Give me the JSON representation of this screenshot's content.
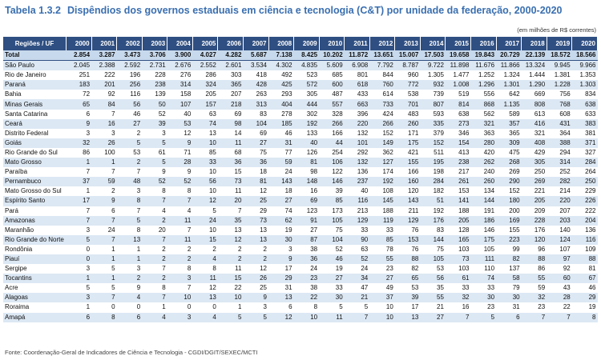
{
  "title": {
    "label": "Tabela 1.3.2",
    "text": "Dispêndios dos governos estaduais em ciência e tecnologia (C&T) por unidade da federação, 2000-2020"
  },
  "unit_note": "(em milhões de R$ correntes)",
  "table": {
    "header": [
      "Regiões / UF",
      "2000",
      "2001",
      "2002",
      "2003",
      "2004",
      "2005",
      "2006",
      "2007",
      "2008",
      "2009",
      "2010",
      "2011",
      "2012",
      "2013",
      "2014",
      "2015",
      "2016",
      "2017",
      "2018",
      "2019",
      "2020"
    ],
    "rows": [
      [
        "Total",
        "2.854",
        "3.287",
        "3.473",
        "3.706",
        "3.900",
        "4.027",
        "4.282",
        "5.687",
        "7.138",
        "8.425",
        "10.202",
        "11.872",
        "13.651",
        "15.007",
        "17.503",
        "19.658",
        "19.843",
        "20.729",
        "22.139",
        "18.572",
        "18.566"
      ],
      [
        "São Paulo",
        "2.045",
        "2.388",
        "2.592",
        "2.731",
        "2.676",
        "2.552",
        "2.601",
        "3.534",
        "4.302",
        "4.835",
        "5.609",
        "6.908",
        "7.792",
        "8.787",
        "9.722",
        "11.898",
        "11.676",
        "11.866",
        "13.324",
        "9.945",
        "9.966"
      ],
      [
        "Rio de Janeiro",
        "251",
        "222",
        "196",
        "228",
        "276",
        "286",
        "303",
        "418",
        "492",
        "523",
        "685",
        "801",
        "844",
        "960",
        "1.305",
        "1.477",
        "1.252",
        "1.324",
        "1.444",
        "1.381",
        "1.353"
      ],
      [
        "Paraná",
        "183",
        "201",
        "256",
        "238",
        "314",
        "324",
        "365",
        "428",
        "425",
        "572",
        "600",
        "618",
        "760",
        "772",
        "932",
        "1.008",
        "1.296",
        "1.301",
        "1.290",
        "1.228",
        "1.303"
      ],
      [
        "Bahia",
        "72",
        "92",
        "116",
        "139",
        "158",
        "205",
        "207",
        "263",
        "293",
        "305",
        "487",
        "433",
        "614",
        "538",
        "739",
        "519",
        "556",
        "642",
        "669",
        "756",
        "834"
      ],
      [
        "Minas Gerais",
        "65",
        "84",
        "56",
        "50",
        "107",
        "157",
        "218",
        "313",
        "404",
        "444",
        "557",
        "663",
        "733",
        "701",
        "807",
        "814",
        "868",
        "1.135",
        "808",
        "768",
        "638"
      ],
      [
        "Santa Catarina",
        "6",
        "7",
        "46",
        "52",
        "40",
        "63",
        "69",
        "83",
        "278",
        "302",
        "328",
        "396",
        "424",
        "483",
        "593",
        "638",
        "562",
        "589",
        "613",
        "608",
        "633"
      ],
      [
        "Ceará",
        "9",
        "16",
        "27",
        "39",
        "53",
        "74",
        "98",
        "104",
        "185",
        "192",
        "266",
        "220",
        "266",
        "260",
        "335",
        "273",
        "321",
        "357",
        "416",
        "431",
        "383"
      ],
      [
        "Distrito Federal",
        "3",
        "3",
        "2",
        "3",
        "12",
        "13",
        "14",
        "69",
        "46",
        "133",
        "166",
        "132",
        "152",
        "171",
        "379",
        "346",
        "363",
        "365",
        "321",
        "364",
        "381"
      ],
      [
        "Goiás",
        "32",
        "26",
        "5",
        "5",
        "9",
        "10",
        "11",
        "27",
        "31",
        "40",
        "44",
        "101",
        "149",
        "175",
        "152",
        "154",
        "280",
        "309",
        "408",
        "388",
        "371"
      ],
      [
        "Rio Grande do Sul",
        "86",
        "100",
        "53",
        "61",
        "71",
        "85",
        "68",
        "75",
        "77",
        "126",
        "254",
        "292",
        "362",
        "421",
        "511",
        "413",
        "420",
        "475",
        "429",
        "294",
        "327"
      ],
      [
        "Mato Grosso",
        "1",
        "1",
        "2",
        "5",
        "28",
        "33",
        "36",
        "36",
        "59",
        "81",
        "106",
        "132",
        "127",
        "155",
        "195",
        "238",
        "262",
        "268",
        "305",
        "314",
        "284"
      ],
      [
        "Paraíba",
        "7",
        "7",
        "7",
        "9",
        "9",
        "10",
        "15",
        "18",
        "24",
        "98",
        "122",
        "136",
        "174",
        "166",
        "198",
        "217",
        "240",
        "269",
        "250",
        "252",
        "264"
      ],
      [
        "Pernambuco",
        "37",
        "59",
        "48",
        "52",
        "52",
        "56",
        "73",
        "81",
        "143",
        "148",
        "146",
        "237",
        "192",
        "160",
        "284",
        "261",
        "260",
        "290",
        "269",
        "282",
        "250"
      ],
      [
        "Mato Grosso do Sul",
        "1",
        "2",
        "3",
        "8",
        "8",
        "10",
        "11",
        "12",
        "18",
        "16",
        "39",
        "40",
        "108",
        "120",
        "182",
        "153",
        "134",
        "152",
        "221",
        "214",
        "229"
      ],
      [
        "Espírito Santo",
        "17",
        "9",
        "8",
        "7",
        "7",
        "12",
        "20",
        "25",
        "27",
        "69",
        "85",
        "116",
        "145",
        "143",
        "51",
        "141",
        "144",
        "180",
        "205",
        "220",
        "226"
      ],
      [
        "Pará",
        "7",
        "6",
        "7",
        "4",
        "4",
        "5",
        "7",
        "29",
        "74",
        "123",
        "173",
        "213",
        "188",
        "211",
        "192",
        "188",
        "191",
        "200",
        "209",
        "207",
        "222"
      ],
      [
        "Amazonas",
        "7",
        "7",
        "5",
        "2",
        "11",
        "24",
        "35",
        "73",
        "62",
        "91",
        "105",
        "129",
        "119",
        "129",
        "176",
        "205",
        "186",
        "169",
        "228",
        "203",
        "204"
      ],
      [
        "Maranhão",
        "3",
        "24",
        "8",
        "20",
        "7",
        "10",
        "13",
        "13",
        "19",
        "27",
        "75",
        "33",
        "33",
        "76",
        "83",
        "128",
        "146",
        "155",
        "176",
        "140",
        "136"
      ],
      [
        "Rio Grande do Norte",
        "5",
        "7",
        "13",
        "7",
        "11",
        "15",
        "12",
        "13",
        "30",
        "87",
        "104",
        "90",
        "85",
        "153",
        "144",
        "165",
        "175",
        "223",
        "120",
        "124",
        "116"
      ],
      [
        "Rondônia",
        "0",
        "1",
        "1",
        "2",
        "2",
        "2",
        "2",
        "2",
        "3",
        "38",
        "52",
        "63",
        "78",
        "76",
        "75",
        "103",
        "105",
        "99",
        "96",
        "107",
        "109"
      ],
      [
        "Piauí",
        "0",
        "1",
        "1",
        "2",
        "2",
        "4",
        "2",
        "2",
        "9",
        "36",
        "46",
        "52",
        "55",
        "88",
        "105",
        "73",
        "111",
        "82",
        "88",
        "97",
        "88"
      ],
      [
        "Sergipe",
        "3",
        "5",
        "3",
        "7",
        "8",
        "8",
        "11",
        "12",
        "17",
        "24",
        "19",
        "24",
        "23",
        "82",
        "53",
        "103",
        "110",
        "137",
        "86",
        "92",
        "81"
      ],
      [
        "Tocantins",
        "1",
        "1",
        "2",
        "2",
        "3",
        "11",
        "15",
        "26",
        "29",
        "23",
        "27",
        "34",
        "27",
        "65",
        "56",
        "61",
        "74",
        "58",
        "55",
        "60",
        "67"
      ],
      [
        "Acre",
        "5",
        "5",
        "9",
        "8",
        "7",
        "12",
        "22",
        "25",
        "31",
        "38",
        "33",
        "47",
        "49",
        "53",
        "35",
        "33",
        "33",
        "79",
        "59",
        "43",
        "46"
      ],
      [
        "Alagoas",
        "3",
        "7",
        "4",
        "7",
        "10",
        "13",
        "10",
        "9",
        "13",
        "22",
        "30",
        "21",
        "37",
        "39",
        "55",
        "32",
        "30",
        "30",
        "32",
        "28",
        "29"
      ],
      [
        "Roraima",
        "1",
        "0",
        "0",
        "1",
        "0",
        "0",
        "1",
        "3",
        "6",
        "8",
        "5",
        "5",
        "10",
        "17",
        "21",
        "16",
        "23",
        "31",
        "23",
        "22",
        "19"
      ],
      [
        "Amapá",
        "6",
        "8",
        "6",
        "4",
        "3",
        "4",
        "5",
        "5",
        "12",
        "10",
        "11",
        "7",
        "10",
        "13",
        "27",
        "7",
        "5",
        "6",
        "7",
        "7",
        "8"
      ]
    ]
  },
  "source": "Fonte: Coordenação-Geral de Indicadores de Ciência e Tecnologia - CGDI/DGIT/SEXEC/MCTI"
}
